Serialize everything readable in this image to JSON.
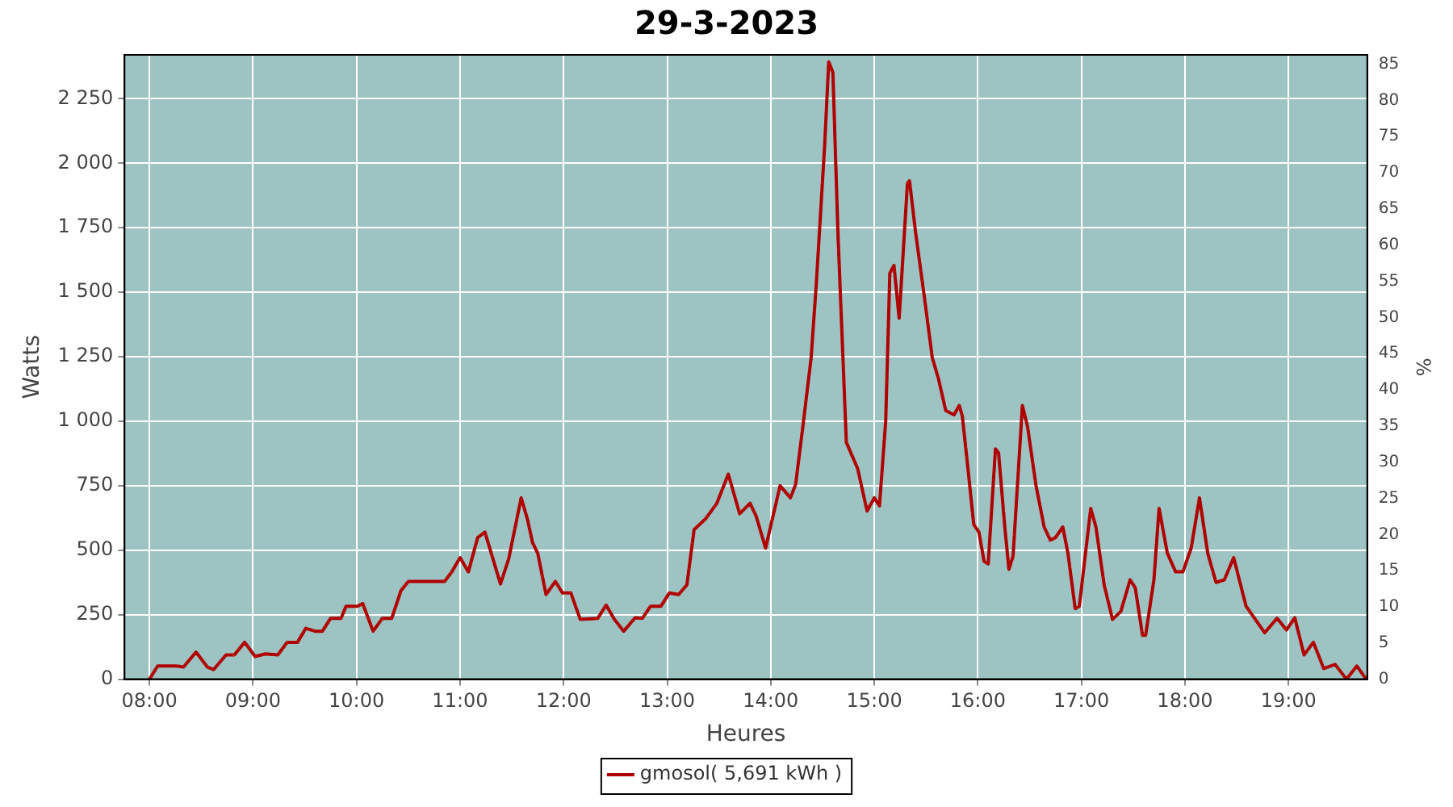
{
  "chart_data": {
    "type": "line",
    "title": "29-3-2023",
    "xlabel": "Heures",
    "ylabel": "Watts",
    "y2label": "%",
    "x": [
      8.0,
      8.08,
      8.26,
      8.33,
      8.45,
      8.56,
      8.62,
      8.74,
      8.82,
      8.92,
      9.02,
      9.12,
      9.24,
      9.33,
      9.43,
      9.51,
      9.6,
      9.67,
      9.75,
      9.85,
      9.9,
      10.01,
      10.06,
      10.16,
      10.25,
      10.34,
      10.43,
      10.5,
      10.85,
      10.92,
      11.0,
      11.08,
      11.17,
      11.24,
      11.39,
      11.47,
      11.59,
      11.65,
      11.7,
      11.75,
      11.83,
      11.92,
      11.99,
      12.07,
      12.16,
      12.33,
      12.41,
      12.49,
      12.58,
      12.69,
      12.76,
      12.84,
      12.94,
      13.02,
      13.11,
      13.19,
      13.26,
      13.37,
      13.48,
      13.59,
      13.7,
      13.8,
      13.86,
      13.95,
      14.09,
      14.19,
      14.24,
      14.31,
      14.39,
      14.44,
      14.52,
      14.56,
      14.6,
      14.65,
      14.73,
      14.84,
      14.93,
      15.0,
      15.05,
      15.11,
      15.15,
      15.19,
      15.24,
      15.32,
      15.34,
      15.4,
      15.48,
      15.56,
      15.62,
      15.69,
      15.77,
      15.82,
      15.85,
      15.91,
      15.96,
      16.01,
      16.06,
      16.1,
      16.17,
      16.2,
      16.26,
      16.3,
      16.34,
      16.43,
      16.48,
      16.56,
      16.64,
      16.7,
      16.75,
      16.82,
      16.87,
      16.94,
      16.98,
      17.09,
      17.14,
      17.22,
      17.3,
      17.38,
      17.47,
      17.52,
      17.59,
      17.62,
      17.7,
      17.75,
      17.83,
      17.91,
      17.98,
      18.06,
      18.14,
      18.22,
      18.3,
      18.38,
      18.47,
      18.59,
      18.77,
      18.89,
      18.98,
      19.06,
      19.15,
      19.24,
      19.34,
      19.45,
      19.56,
      19.66,
      19.75
    ],
    "series": [
      {
        "name": "gmosol( 5,691 kWh )",
        "color": "#b00000",
        "values": [
          0,
          51,
          51,
          47,
          105,
          47,
          37,
          94,
          94,
          143,
          88,
          98,
          94,
          143,
          143,
          197,
          186,
          186,
          236,
          236,
          283,
          283,
          293,
          186,
          236,
          236,
          344,
          379,
          379,
          416,
          471,
          416,
          549,
          570,
          369,
          467,
          703,
          621,
          529,
          488,
          328,
          379,
          334,
          334,
          232,
          236,
          287,
          232,
          186,
          238,
          236,
          283,
          283,
          334,
          328,
          365,
          580,
          621,
          682,
          795,
          641,
          682,
          631,
          508,
          750,
          703,
          754,
          979,
          1246,
          1533,
          2065,
          2393,
          2352,
          1717,
          918,
          815,
          652,
          703,
          672,
          1000,
          1574,
          1604,
          1399,
          1922,
          1932,
          1727,
          1492,
          1246,
          1164,
          1041,
          1025,
          1061,
          1020,
          795,
          600,
          570,
          457,
          447,
          893,
          877,
          590,
          426,
          477,
          1061,
          979,
          754,
          590,
          539,
          549,
          590,
          488,
          273,
          283,
          662,
          590,
          365,
          232,
          262,
          385,
          354,
          170,
          170,
          385,
          662,
          488,
          416,
          416,
          508,
          703,
          488,
          375,
          385,
          471,
          283,
          180,
          236,
          191,
          238,
          94,
          143,
          41,
          57,
          0,
          51,
          0
        ]
      }
    ],
    "xlim": [
      7.76,
      19.76
    ],
    "xticks": [
      {
        "value": 8,
        "label": "08:00"
      },
      {
        "value": 9,
        "label": "09:00"
      },
      {
        "value": 10,
        "label": "10:00"
      },
      {
        "value": 11,
        "label": "11:00"
      },
      {
        "value": 12,
        "label": "12:00"
      },
      {
        "value": 13,
        "label": "13:00"
      },
      {
        "value": 14,
        "label": "14:00"
      },
      {
        "value": 15,
        "label": "15:00"
      },
      {
        "value": 16,
        "label": "16:00"
      },
      {
        "value": 17,
        "label": "17:00"
      },
      {
        "value": 18,
        "label": "18:00"
      },
      {
        "value": 19,
        "label": "19:00"
      }
    ],
    "ylim": [
      0,
      2420
    ],
    "yticks": [
      0,
      250,
      500,
      750,
      {
        "value": 1000,
        "label": "1 000"
      },
      {
        "value": 1250,
        "label": "1 250"
      },
      {
        "value": 1500,
        "label": "1 500"
      },
      {
        "value": 1750,
        "label": "1 750"
      },
      {
        "value": 2000,
        "label": "2 000"
      },
      {
        "value": 2250,
        "label": "2 250"
      }
    ],
    "y2lim": [
      0,
      86.3
    ],
    "y2ticks": [
      0,
      5,
      10,
      15,
      20,
      25,
      30,
      35,
      40,
      45,
      50,
      55,
      60,
      65,
      70,
      75,
      80,
      85
    ],
    "grid": true,
    "legend": "bottom",
    "marker": "none",
    "line_style": "solid"
  }
}
